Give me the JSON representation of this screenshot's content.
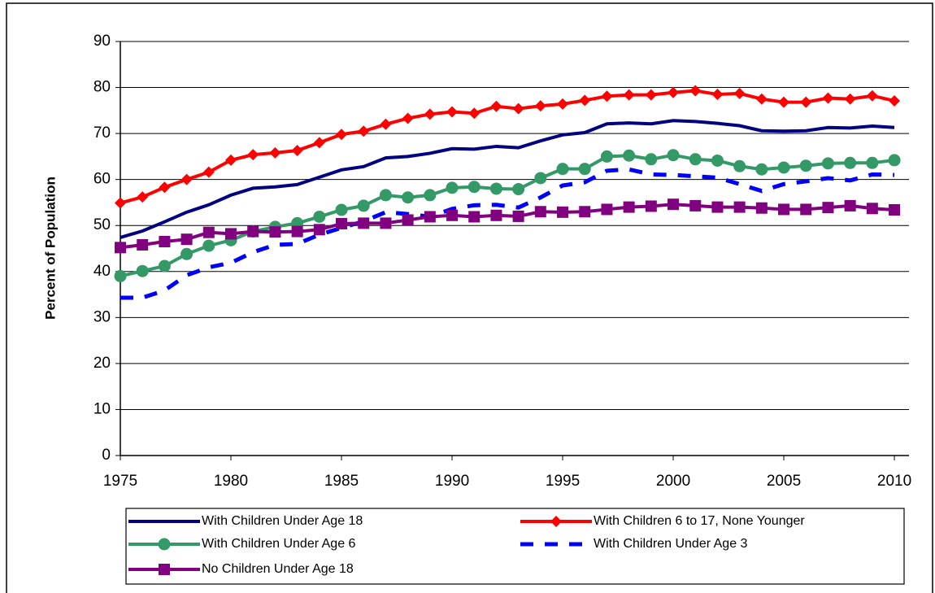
{
  "chart_data": {
    "type": "line",
    "y_label": "Percent of Population",
    "x": [
      1975,
      1976,
      1977,
      1978,
      1979,
      1980,
      1981,
      1982,
      1983,
      1984,
      1985,
      1986,
      1987,
      1988,
      1989,
      1990,
      1991,
      1992,
      1993,
      1994,
      1995,
      1996,
      1997,
      1998,
      1999,
      2000,
      2001,
      2002,
      2003,
      2004,
      2005,
      2006,
      2007,
      2008,
      2009,
      2010
    ],
    "xlim": [
      1975,
      2010.66
    ],
    "xticks": [
      1975,
      1980,
      1985,
      1990,
      1995,
      2000,
      2005,
      2010
    ],
    "ylim": [
      0,
      90
    ],
    "yticks": [
      0,
      10,
      20,
      30,
      40,
      50,
      60,
      70,
      80,
      90
    ],
    "grid": true,
    "series": [
      {
        "name": "With Children Under Age 18",
        "color": "#000080",
        "marker": "none",
        "dashed": false,
        "values": [
          47.4,
          48.8,
          50.8,
          52.9,
          54.5,
          56.6,
          58.1,
          58.4,
          58.9,
          60.5,
          62.1,
          62.8,
          64.7,
          65.0,
          65.7,
          66.7,
          66.6,
          67.2,
          66.9,
          68.4,
          69.7,
          70.2,
          72.1,
          72.3,
          72.1,
          72.8,
          72.6,
          72.2,
          71.7,
          70.6,
          70.5,
          70.6,
          71.3,
          71.2,
          71.6,
          71.3
        ]
      },
      {
        "name": "With Children 6 to 17, None Younger",
        "color": "#ff0000",
        "marker": "diamond",
        "dashed": false,
        "values": [
          54.9,
          56.2,
          58.3,
          60.0,
          61.6,
          64.2,
          65.4,
          65.8,
          66.3,
          68.0,
          69.8,
          70.5,
          72.0,
          73.3,
          74.2,
          74.7,
          74.4,
          75.9,
          75.4,
          76.0,
          76.4,
          77.2,
          78.1,
          78.4,
          78.4,
          78.9,
          79.3,
          78.5,
          78.7,
          77.5,
          76.8,
          76.8,
          77.7,
          77.5,
          78.2,
          77.1
        ]
      },
      {
        "name": "With Children Under Age 6",
        "color": "#339966",
        "marker": "circle",
        "dashed": false,
        "values": [
          39.0,
          40.1,
          41.2,
          43.8,
          45.6,
          46.8,
          48.7,
          49.7,
          50.5,
          51.9,
          53.4,
          54.3,
          56.6,
          56.1,
          56.6,
          58.2,
          58.4,
          58.0,
          57.9,
          60.3,
          62.3,
          62.3,
          65.0,
          65.2,
          64.4,
          65.3,
          64.4,
          64.1,
          62.9,
          62.2,
          62.6,
          63.0,
          63.5,
          63.6,
          63.6,
          64.2
        ]
      },
      {
        "name": "With Children Under Age 3",
        "color": "#0000ff",
        "marker": "none",
        "dashed": true,
        "values": [
          34.3,
          34.3,
          35.9,
          39.2,
          40.9,
          41.9,
          44.2,
          45.8,
          46.0,
          48.0,
          49.5,
          50.9,
          52.9,
          52.5,
          51.9,
          53.6,
          54.4,
          54.5,
          53.9,
          56.1,
          58.7,
          59.4,
          61.9,
          62.2,
          61.1,
          61.0,
          60.7,
          60.4,
          59.0,
          57.5,
          59.0,
          59.6,
          60.3,
          59.8,
          61.1,
          61.0
        ]
      },
      {
        "name": "No Children Under Age 18",
        "color": "#800080",
        "marker": "square",
        "dashed": false,
        "values": [
          45.2,
          45.8,
          46.5,
          47.0,
          48.5,
          48.2,
          48.7,
          48.6,
          48.7,
          49.1,
          50.4,
          50.5,
          50.5,
          51.2,
          51.9,
          52.2,
          51.9,
          52.2,
          52.0,
          53.0,
          52.9,
          53.0,
          53.5,
          54.0,
          54.2,
          54.6,
          54.3,
          54.0,
          54.0,
          53.8,
          53.5,
          53.5,
          53.9,
          54.3,
          53.7,
          53.4
        ]
      }
    ]
  }
}
